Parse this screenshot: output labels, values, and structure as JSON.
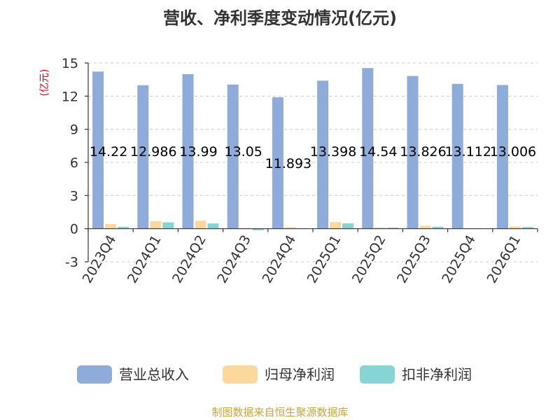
{
  "chart_data": {
    "type": "bar",
    "title": "营收、净利季度变动情况(亿元)",
    "ylabel": "(亿元)",
    "categories": [
      "2023Q4",
      "2024Q1",
      "2024Q2",
      "2024Q3",
      "2024Q4",
      "2025Q1",
      "2025Q2",
      "2025Q3",
      "2025Q4",
      "2026Q1"
    ],
    "ylim": [
      -3,
      15
    ],
    "yticks": [
      -3,
      0,
      3,
      6,
      9,
      12,
      15
    ],
    "grid": true,
    "legend_position": "bottom",
    "series": [
      {
        "name": "营业总收入",
        "color": "#8eabd9",
        "values": [
          14.22,
          12.986,
          13.99,
          13.05,
          11.893,
          13.398,
          14.54,
          13.826,
          13.112,
          13.006
        ],
        "labels": [
          "14.22",
          "12.986",
          "13.99",
          "13.05",
          "11.893",
          "13.398",
          "14.54",
          "13.826",
          "13.112",
          "13.006"
        ]
      },
      {
        "name": "归母净利润",
        "color": "#fcd89c",
        "values": [
          0.42,
          0.68,
          0.72,
          0.06,
          0.14,
          0.6,
          0.12,
          0.26,
          0.05,
          0.2
        ]
      },
      {
        "name": "扣非净利润",
        "color": "#86d4d4",
        "values": [
          0.16,
          0.57,
          0.47,
          -0.14,
          0.03,
          0.48,
          0.1,
          0.18,
          0.02,
          0.15
        ]
      }
    ]
  },
  "source": "制图数据来自恒生聚源数据库"
}
